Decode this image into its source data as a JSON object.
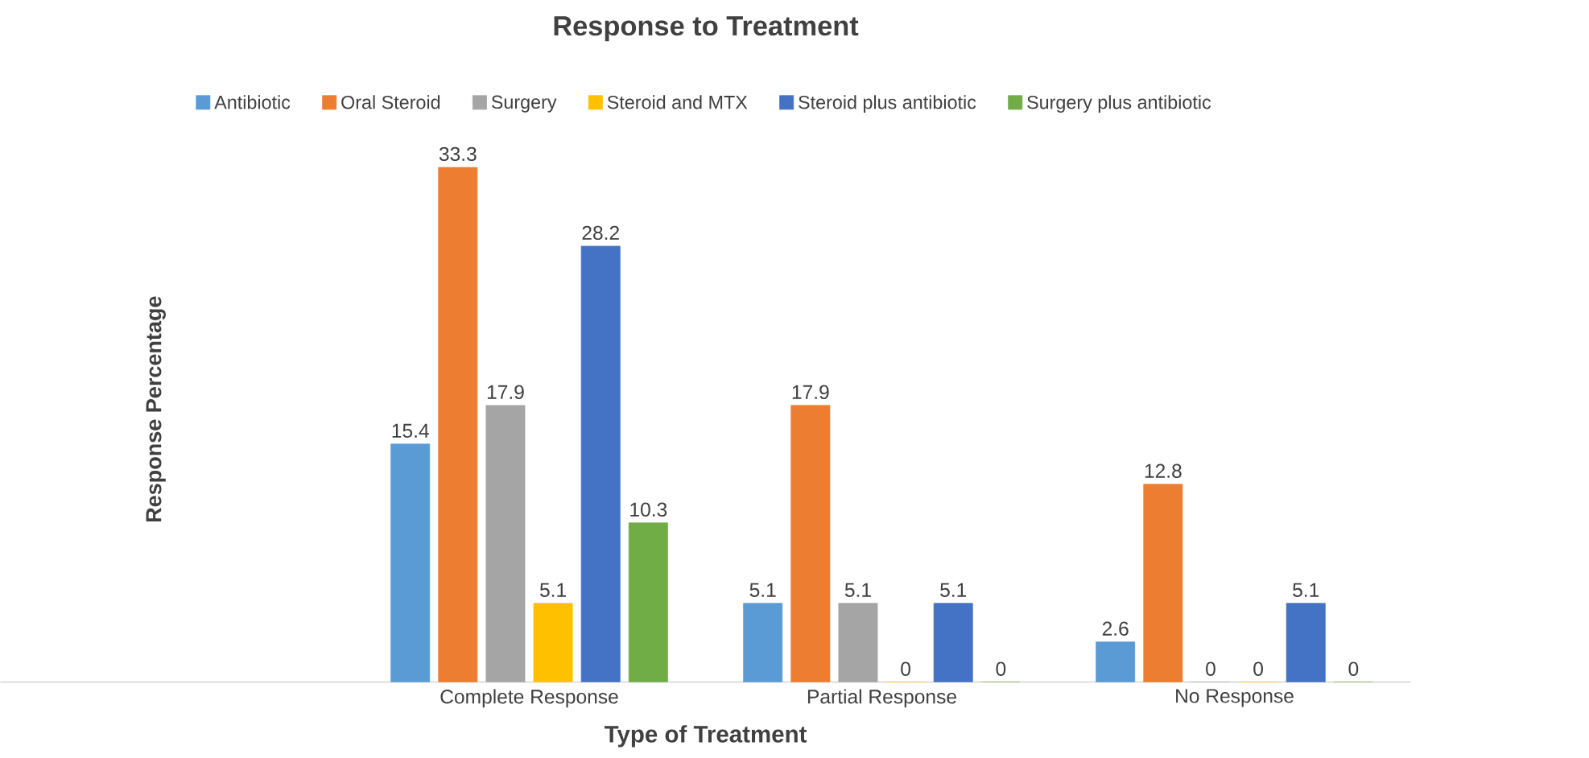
{
  "chart_data": {
    "type": "bar",
    "title": "Response to Treatment",
    "xlabel": "Type of Treatment",
    "ylabel": "Response Percentage",
    "categories": [
      null,
      "Complete Response",
      "Partial Response",
      "No Response"
    ],
    "series": [
      {
        "name": "Antibiotic",
        "color": "#5b9bd5",
        "values": [
          null,
          15.4,
          5.1,
          2.6
        ]
      },
      {
        "name": "Oral Steroid",
        "color": "#ed7d31",
        "values": [
          null,
          33.3,
          17.9,
          12.8
        ]
      },
      {
        "name": "Surgery",
        "color": "#a5a5a5",
        "values": [
          null,
          17.9,
          5.1,
          0
        ]
      },
      {
        "name": "Steroid and MTX",
        "color": "#ffc000",
        "values": [
          null,
          5.1,
          0,
          0
        ]
      },
      {
        "name": "Steroid plus antibiotic",
        "color": "#4472c4",
        "values": [
          null,
          28.2,
          5.1,
          5.1
        ]
      },
      {
        "name": "Surgery plus antibiotic",
        "color": "#70ad47",
        "values": [
          null,
          10.3,
          0,
          0
        ]
      }
    ],
    "tick_labels": "x",
    "data_labels": true,
    "legend": "top",
    "grid": false
  }
}
